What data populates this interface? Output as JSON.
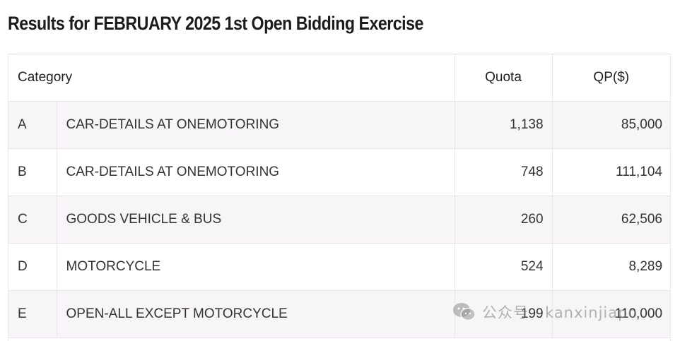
{
  "title": "Results for FEBRUARY 2025 1st Open Bidding Exercise",
  "table": {
    "headers": {
      "category": "Category",
      "quota": "Quota",
      "qp": "QP($)"
    },
    "rows": [
      {
        "code": "A",
        "description": "CAR-DETAILS AT ONEMOTORING",
        "quota": "1,138",
        "qp": "85,000"
      },
      {
        "code": "B",
        "description": "CAR-DETAILS AT ONEMOTORING",
        "quota": "748",
        "qp": "111,104"
      },
      {
        "code": "C",
        "description": "GOODS VEHICLE & BUS",
        "quota": "260",
        "qp": "62,506"
      },
      {
        "code": "D",
        "description": "MOTORCYCLE",
        "quota": "524",
        "qp": "8,289"
      },
      {
        "code": "E",
        "description": "OPEN-ALL EXCEPT MOTORCYCLE",
        "quota": "199",
        "qp": "110,000"
      }
    ]
  },
  "watermark": {
    "icon": "wechat-icon",
    "text": "公众号 · kanxinjiapo"
  }
}
